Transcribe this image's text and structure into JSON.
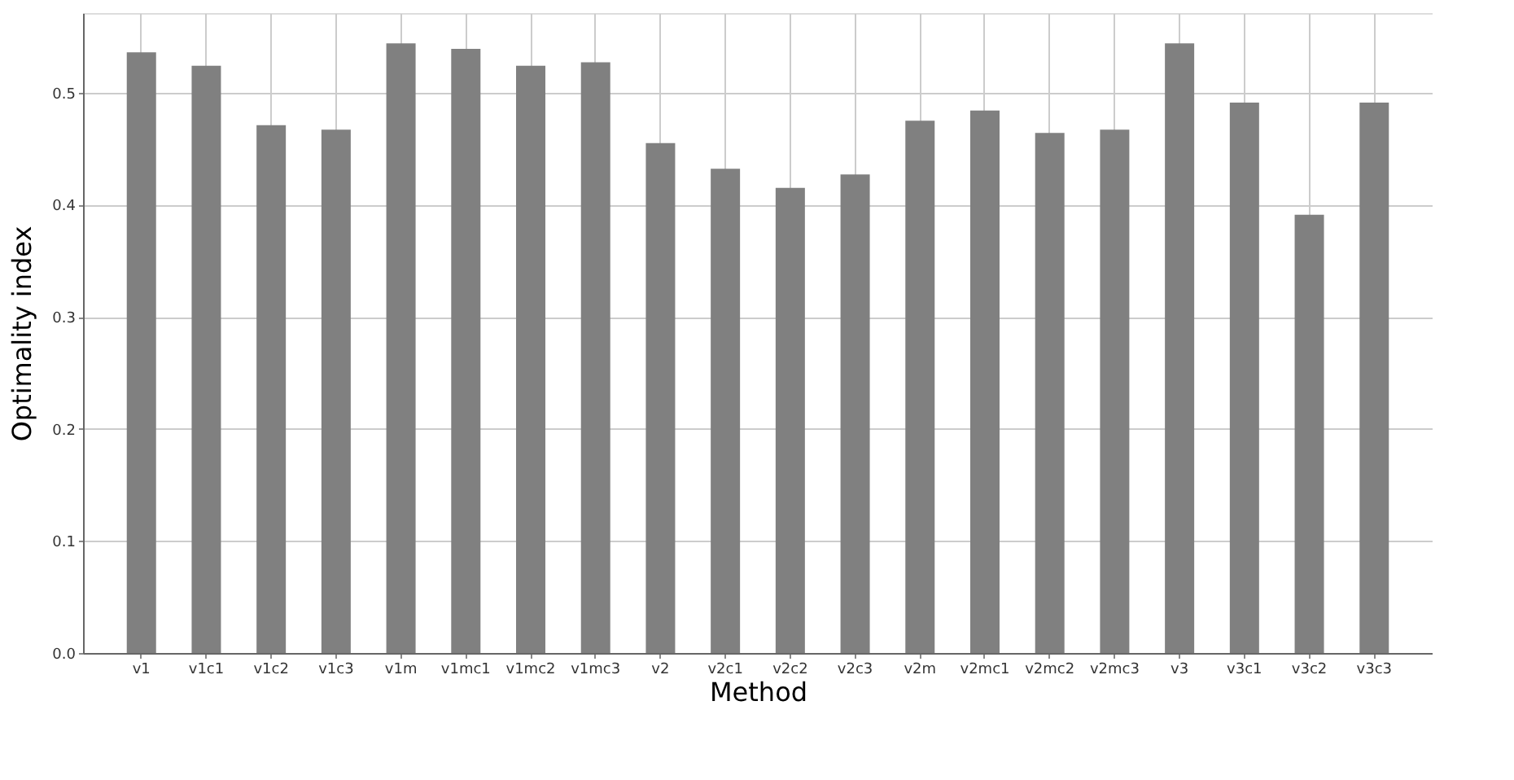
{
  "chart_data": {
    "type": "bar",
    "xlabel": "Method",
    "ylabel": "Optimality index",
    "categories": [
      "v1",
      "v1c1",
      "v1c2",
      "v1c3",
      "v1m",
      "v1mc1",
      "v1mc2",
      "v1mc3",
      "v2",
      "v2c1",
      "v2c2",
      "v2c3",
      "v2m",
      "v2mc1",
      "v2mc2",
      "v2mc3",
      "v3",
      "v3c1",
      "v3c2",
      "v3c3"
    ],
    "values": [
      0.536,
      0.524,
      0.471,
      0.467,
      0.544,
      0.539,
      0.524,
      0.527,
      0.455,
      0.432,
      0.415,
      0.427,
      0.475,
      0.484,
      0.464,
      0.467,
      0.544,
      0.491,
      0.391,
      0.491
    ],
    "color": "#808080",
    "ylim": [
      0,
      0.571
    ],
    "yticks": [
      {
        "value": 0,
        "label": "0.0"
      },
      0.1,
      0.2,
      0.3,
      0.4,
      0.5
    ],
    "grid": true
  }
}
